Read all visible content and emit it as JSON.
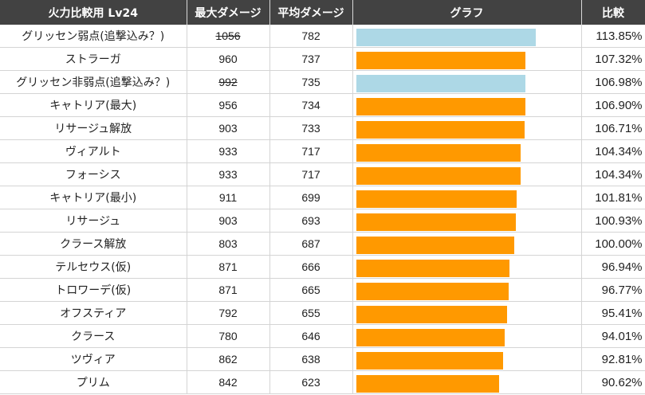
{
  "chart_data": {
    "type": "table",
    "headers": [
      "火力比較用 Lv24",
      "最大ダメージ",
      "平均ダメージ",
      "グラフ",
      "比較"
    ],
    "scale_max_percent": 118.5,
    "colors": {
      "normal": "#FF9900",
      "highlight": "#ADD8E6"
    },
    "rows": [
      {
        "name": "グリッセン弱点(追撃込み？)",
        "max": "1056",
        "max_struck": true,
        "avg": "782",
        "ratio": "113.85%",
        "percent": 113.85,
        "highlight": true
      },
      {
        "name": "ストラーガ",
        "max": "960",
        "max_struck": false,
        "avg": "737",
        "ratio": "107.32%",
        "percent": 107.32,
        "highlight": false
      },
      {
        "name": "グリッセン非弱点(追撃込み？)",
        "max": "992",
        "max_struck": true,
        "avg": "735",
        "ratio": "106.98%",
        "percent": 106.98,
        "highlight": true
      },
      {
        "name": "キャトリア(最大)",
        "max": "956",
        "max_struck": false,
        "avg": "734",
        "ratio": "106.90%",
        "percent": 106.9,
        "highlight": false
      },
      {
        "name": "リサージュ解放",
        "max": "903",
        "max_struck": false,
        "avg": "733",
        "ratio": "106.71%",
        "percent": 106.71,
        "highlight": false
      },
      {
        "name": "ヴィアルト",
        "max": "933",
        "max_struck": false,
        "avg": "717",
        "ratio": "104.34%",
        "percent": 104.34,
        "highlight": false
      },
      {
        "name": "フォーシス",
        "max": "933",
        "max_struck": false,
        "avg": "717",
        "ratio": "104.34%",
        "percent": 104.34,
        "highlight": false
      },
      {
        "name": "キャトリア(最小)",
        "max": "911",
        "max_struck": false,
        "avg": "699",
        "ratio": "101.81%",
        "percent": 101.81,
        "highlight": false
      },
      {
        "name": "リサージュ",
        "max": "903",
        "max_struck": false,
        "avg": "693",
        "ratio": "100.93%",
        "percent": 100.93,
        "highlight": false
      },
      {
        "name": "クラース解放",
        "max": "803",
        "max_struck": false,
        "avg": "687",
        "ratio": "100.00%",
        "percent": 100.0,
        "highlight": false
      },
      {
        "name": "テルセウス(仮)",
        "max": "871",
        "max_struck": false,
        "avg": "666",
        "ratio": "96.94%",
        "percent": 96.94,
        "highlight": false
      },
      {
        "name": "トロワーデ(仮)",
        "max": "871",
        "max_struck": false,
        "avg": "665",
        "ratio": "96.77%",
        "percent": 96.77,
        "highlight": false
      },
      {
        "name": "オフスティア",
        "max": "792",
        "max_struck": false,
        "avg": "655",
        "ratio": "95.41%",
        "percent": 95.41,
        "highlight": false
      },
      {
        "name": "クラース",
        "max": "780",
        "max_struck": false,
        "avg": "646",
        "ratio": "94.01%",
        "percent": 94.01,
        "highlight": false
      },
      {
        "name": "ツヴィア",
        "max": "862",
        "max_struck": false,
        "avg": "638",
        "ratio": "92.81%",
        "percent": 92.81,
        "highlight": false
      },
      {
        "name": "プリム",
        "max": "842",
        "max_struck": false,
        "avg": "623",
        "ratio": "90.62%",
        "percent": 90.62,
        "highlight": false
      }
    ]
  }
}
